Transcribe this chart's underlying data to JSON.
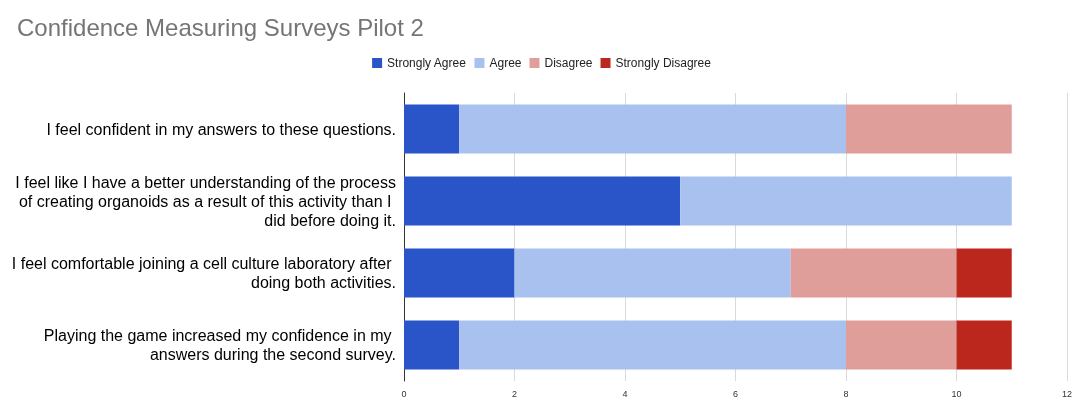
{
  "chart_data": {
    "type": "bar",
    "orientation": "horizontal",
    "stacked": true,
    "title": "Confidence Measuring Surveys Pilot 2",
    "categories": [
      "I feel confident in my answers to these questions.",
      "I feel like I have a better understanding of the process of creating organoids as a result of this activity than I did before doing it.",
      "I feel comfortable joining a cell culture laboratory after doing both activities.",
      "Playing the game increased my confidence in my answers during the second survey."
    ],
    "series": [
      {
        "name": "Strongly Agree",
        "color": "#2955c8",
        "values": [
          1,
          5,
          2,
          1
        ]
      },
      {
        "name": "Agree",
        "color": "#a9c1ef",
        "values": [
          7,
          6,
          5,
          7
        ]
      },
      {
        "name": "Disagree",
        "color": "#e09e9b",
        "values": [
          3,
          0,
          3,
          2
        ]
      },
      {
        "name": "Strongly Disagree",
        "color": "#bb271d",
        "values": [
          0,
          0,
          1,
          1
        ]
      }
    ],
    "xlim": [
      0,
      12
    ],
    "xticks": [
      0,
      2,
      4,
      6,
      8,
      10,
      12
    ],
    "grid": "x",
    "legend": "top"
  }
}
